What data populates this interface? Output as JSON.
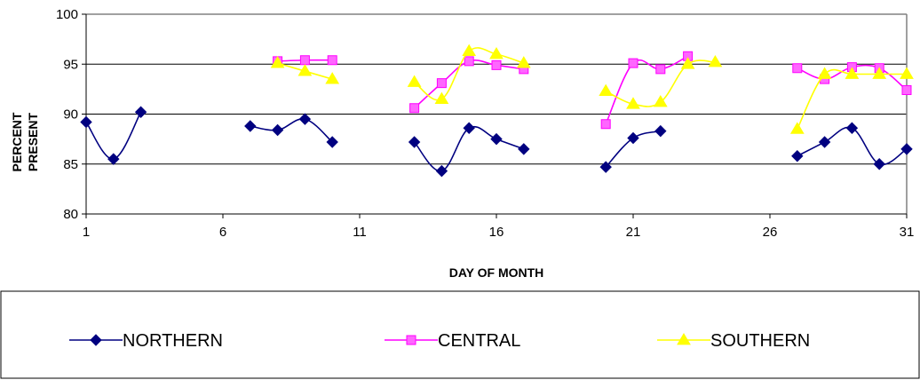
{
  "chart_data": {
    "type": "line",
    "title": "",
    "xlabel": "DAY OF MONTH",
    "ylabel_lines": [
      "PERCENT",
      "PRESENT"
    ],
    "xlim": [
      1,
      31
    ],
    "ylim": [
      80,
      100
    ],
    "x_ticks": [
      1,
      6,
      11,
      16,
      21,
      26,
      31
    ],
    "y_ticks": [
      80,
      85,
      90,
      95,
      100
    ],
    "grid": "horizontal",
    "legend_position": "bottom",
    "series": [
      {
        "name": "NORTHERN",
        "color": "#000080",
        "marker": "diamond",
        "segments": [
          [
            [
              1,
              89.2
            ],
            [
              2,
              85.5
            ],
            [
              3,
              90.2
            ]
          ],
          [
            [
              7,
              88.8
            ],
            [
              8,
              88.4
            ],
            [
              9,
              89.5
            ],
            [
              10,
              87.2
            ]
          ],
          [
            [
              13,
              87.2
            ],
            [
              14,
              84.3
            ],
            [
              15,
              88.6
            ],
            [
              16,
              87.5
            ],
            [
              17,
              86.5
            ]
          ],
          [
            [
              20,
              84.7
            ],
            [
              21,
              87.6
            ],
            [
              22,
              88.3
            ]
          ],
          [
            [
              27,
              85.8
            ],
            [
              28,
              87.2
            ],
            [
              29,
              88.6
            ],
            [
              30,
              85.0
            ],
            [
              31,
              86.5
            ]
          ]
        ]
      },
      {
        "name": "CENTRAL",
        "color": "#FF00FF",
        "marker": "square",
        "segments": [
          [
            [
              8,
              95.3
            ],
            [
              9,
              95.4
            ],
            [
              10,
              95.4
            ]
          ],
          [
            [
              13,
              90.6
            ],
            [
              14,
              93.1
            ],
            [
              15,
              95.3
            ],
            [
              16,
              94.9
            ],
            [
              17,
              94.5
            ]
          ],
          [
            [
              20,
              89.0
            ],
            [
              21,
              95.1
            ],
            [
              22,
              94.5
            ],
            [
              23,
              95.8
            ]
          ],
          [
            [
              27,
              94.6
            ],
            [
              28,
              93.5
            ],
            [
              29,
              94.7
            ],
            [
              30,
              94.6
            ],
            [
              31,
              92.4
            ]
          ]
        ]
      },
      {
        "name": "SOUTHERN",
        "color": "#FFFF00",
        "marker": "triangle",
        "segments": [
          [
            [
              8,
              95.1
            ],
            [
              9,
              94.3
            ],
            [
              10,
              93.5
            ]
          ],
          [
            [
              13,
              93.2
            ],
            [
              14,
              91.5
            ],
            [
              15,
              96.3
            ],
            [
              16,
              96.0
            ],
            [
              17,
              95.1
            ]
          ],
          [
            [
              20,
              92.3
            ],
            [
              21,
              91.0
            ],
            [
              22,
              91.2
            ],
            [
              23,
              95.0
            ],
            [
              24,
              95.2
            ]
          ],
          [
            [
              27,
              88.5
            ],
            [
              28,
              94.0
            ],
            [
              29,
              94.0
            ],
            [
              30,
              94.0
            ],
            [
              31,
              94.0
            ]
          ]
        ]
      }
    ]
  }
}
